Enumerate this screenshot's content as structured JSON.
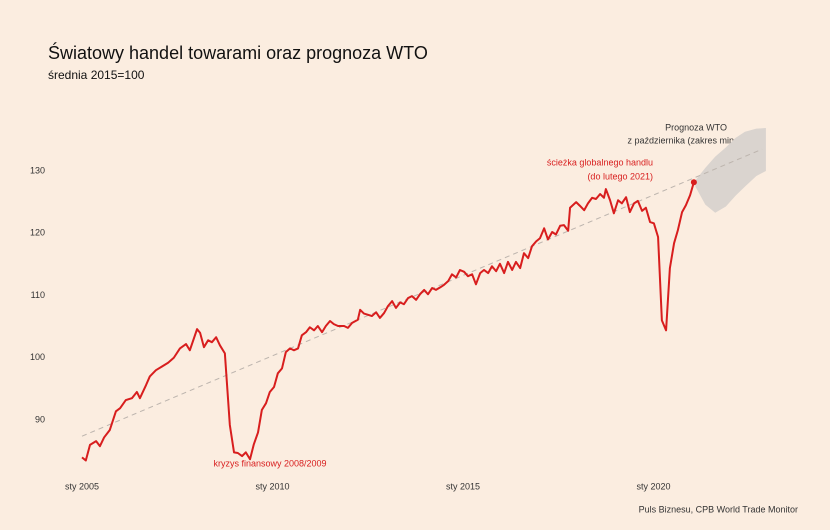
{
  "chart_data": {
    "type": "line",
    "title": "Światowy handel towarami oraz prognoza WTO",
    "subtitle": "średnia 2015=100",
    "source": "Puls Biznesu, CPB World Trade Monitor",
    "annotations": [
      "kryzys finansowy 2008/2009",
      "ścieżka globalnego handlu",
      "(do lutego 2021)",
      "Prognoza WTO",
      "z października (zakres min-max"
    ],
    "xlim": [
      2005,
      2023
    ],
    "xticks": [
      {
        "value": 2005,
        "label": "sty 2005"
      },
      {
        "value": 2010,
        "label": "sty 2010"
      },
      {
        "value": 2015,
        "label": "sty 2015"
      },
      {
        "value": 2020,
        "label": "sty 2020"
      }
    ],
    "ylim": [
      82,
      138
    ],
    "yticks": [
      90,
      100,
      110,
      120,
      130
    ],
    "grid": false,
    "x": [
      2005.0,
      2005.1,
      2005.21,
      2005.37,
      2005.47,
      2005.58,
      2005.73,
      2005.89,
      2006.0,
      2006.15,
      2006.31,
      2006.44,
      2006.52,
      2006.68,
      2006.78,
      2006.94,
      2007.1,
      2007.26,
      2007.41,
      2007.57,
      2007.73,
      2007.83,
      2008.02,
      2008.1,
      2008.2,
      2008.31,
      2008.41,
      2008.52,
      2008.62,
      2008.75,
      2008.88,
      2008.99,
      2009.09,
      2009.2,
      2009.3,
      2009.41,
      2009.51,
      2009.62,
      2009.72,
      2009.83,
      2009.93,
      2010.04,
      2010.14,
      2010.25,
      2010.35,
      2010.46,
      2010.56,
      2010.67,
      2010.77,
      2010.88,
      2010.98,
      2011.09,
      2011.19,
      2011.3,
      2011.4,
      2011.51,
      2011.61,
      2011.72,
      2011.88,
      2011.98,
      2012.09,
      2012.24,
      2012.3,
      2012.4,
      2012.51,
      2012.61,
      2012.72,
      2012.82,
      2012.93,
      2013.03,
      2013.14,
      2013.24,
      2013.35,
      2013.45,
      2013.56,
      2013.66,
      2013.77,
      2013.87,
      2013.98,
      2014.08,
      2014.19,
      2014.29,
      2014.4,
      2014.5,
      2014.61,
      2014.71,
      2014.82,
      2014.92,
      2015.03,
      2015.13,
      2015.24,
      2015.34,
      2015.45,
      2015.55,
      2015.66,
      2015.76,
      2015.87,
      2015.97,
      2016.08,
      2016.18,
      2016.29,
      2016.39,
      2016.5,
      2016.6,
      2016.71,
      2016.81,
      2016.92,
      2017.02,
      2017.13,
      2017.23,
      2017.34,
      2017.44,
      2017.55,
      2017.65,
      2017.76,
      2017.81,
      2017.97,
      2018.07,
      2018.18,
      2018.28,
      2018.39,
      2018.49,
      2018.6,
      2018.7,
      2018.75,
      2018.86,
      2018.96,
      2019.07,
      2019.17,
      2019.28,
      2019.38,
      2019.49,
      2019.59,
      2019.7,
      2019.8,
      2019.91,
      2020.01,
      2020.12,
      2020.22,
      2020.33,
      2020.43,
      2020.54,
      2020.64,
      2020.75,
      2020.85,
      2020.96,
      2021.06
    ],
    "series": [
      {
        "color": "#d81e1e",
        "values": [
          84,
          83.5,
          86,
          86.6,
          85.8,
          87.2,
          88.4,
          91.4,
          91.9,
          93.2,
          93.5,
          94.5,
          93.5,
          95.6,
          97,
          98,
          98.6,
          99.2,
          100,
          101.5,
          102.2,
          101.2,
          104.6,
          104,
          101.7,
          102.8,
          102.5,
          103.3,
          102,
          100.7,
          89.2,
          84.8,
          84.7,
          84.2,
          84.8,
          83.7,
          86.1,
          88,
          91.6,
          92.7,
          94.5,
          95.3,
          97.5,
          98.3,
          100.9,
          101.5,
          101.2,
          101.5,
          103.6,
          104.1,
          104.9,
          104.4,
          105.1,
          104.1,
          105.1,
          105.9,
          105.4,
          105.1,
          105.1,
          104.8,
          105.6,
          106.1,
          107.7,
          107.1,
          106.9,
          106.7,
          107.3,
          106.4,
          107.2,
          108.3,
          109.1,
          108,
          108.9,
          108.6,
          109.6,
          109.9,
          109.3,
          110.2,
          110.9,
          110.2,
          111.2,
          110.9,
          111.3,
          111.7,
          112.3,
          113.4,
          112.9,
          114.1,
          113.8,
          113.1,
          113.4,
          111.8,
          113.6,
          114.1,
          113.6,
          114.7,
          113.9,
          115.1,
          113.6,
          115.4,
          114.1,
          115.4,
          114.4,
          116.8,
          116,
          117.9,
          118.7,
          119.2,
          120.8,
          119,
          120.2,
          119.8,
          121.2,
          121.3,
          120.4,
          124.1,
          125,
          124.4,
          123.7,
          124.8,
          125.7,
          125.5,
          126.3,
          125.7,
          127.1,
          125.3,
          123.2,
          125.3,
          124.8,
          125.8,
          123.4,
          124.8,
          125.2,
          123.6,
          124.1,
          121.8,
          121.6,
          119.4,
          106,
          104.4,
          114.4,
          118.4,
          120.5,
          123.4,
          124.5,
          126.1,
          128.2
        ]
      }
    ],
    "trend": {
      "color": "#bdb5ae",
      "x": [
        2005,
        2022.85
      ],
      "values": [
        87.4,
        133.5
      ]
    },
    "forecast": {
      "color": "#dad4cf",
      "x": [
        2021.1,
        2021.36,
        2021.62,
        2021.9,
        2022.15,
        2022.4,
        2022.7,
        2022.95
      ],
      "upper": [
        128.5,
        130.5,
        132.3,
        133.8,
        135.3,
        136.3,
        136.8,
        136.9
      ],
      "lower": [
        127.5,
        124.6,
        123.3,
        124.3,
        126,
        127.5,
        129.2,
        130
      ]
    }
  }
}
